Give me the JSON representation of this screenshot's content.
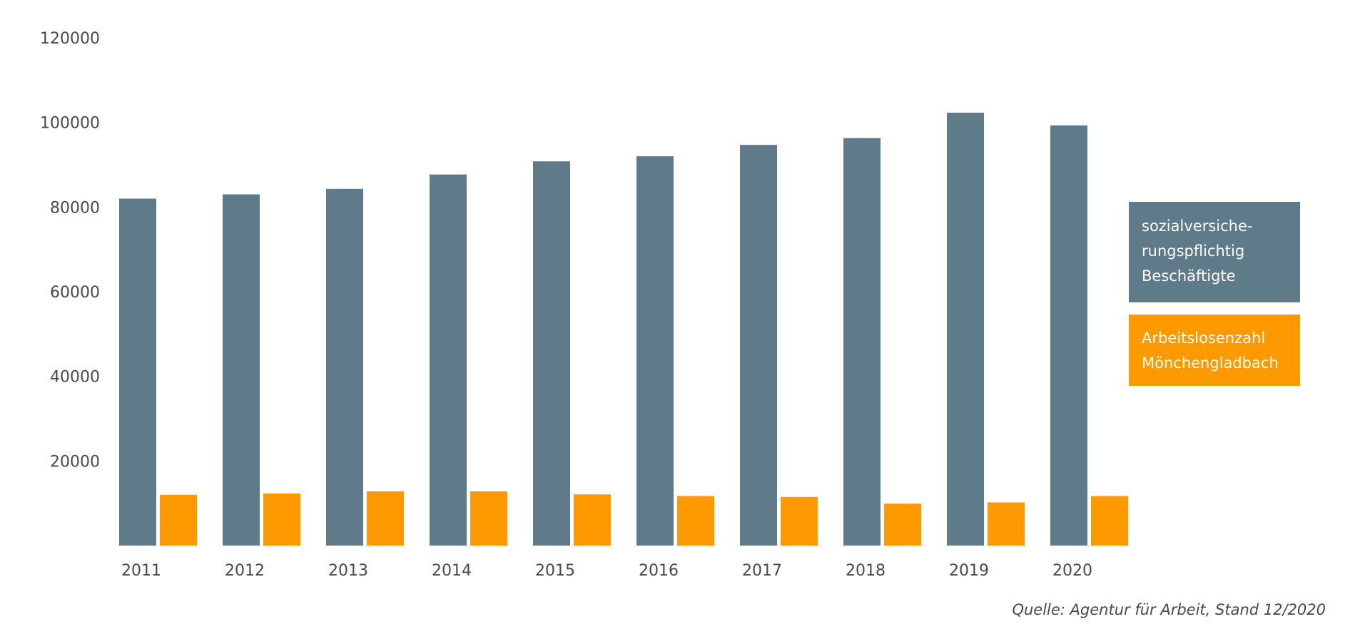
{
  "chart_data": {
    "type": "bar",
    "title": "",
    "xlabel": "",
    "ylabel": "",
    "categories": [
      "2011",
      "2012",
      "2013",
      "2014",
      "2015",
      "2016",
      "2017",
      "2018",
      "2019",
      "2020"
    ],
    "ylim": [
      0,
      120000
    ],
    "yticks": [
      "20000",
      "40000",
      "60000",
      "80000",
      "100000",
      "120000"
    ],
    "ytick_values": [
      20000,
      40000,
      60000,
      80000,
      100000,
      120000
    ],
    "grid": false,
    "legend_position": "right",
    "series": [
      {
        "name": "sozialversicherungspflichtig Beschäftigte",
        "name_lines": [
          "sozialversiche-",
          "rungspflichtig",
          "Beschäftigte"
        ],
        "color": "#5f7b89",
        "values": [
          82000,
          83000,
          84300,
          87700,
          90800,
          92000,
          94700,
          96300,
          102300,
          99300
        ]
      },
      {
        "name": "Arbeitslosenzahl Mönchengladbach",
        "name_lines": [
          "Arbeitslosenzahl",
          "Mönchengladbach"
        ],
        "color": "#ff9900",
        "values": [
          12000,
          12300,
          12800,
          12800,
          12100,
          11700,
          11500,
          9900,
          10200,
          11700
        ]
      }
    ]
  },
  "source_note": "Quelle: Agentur für Arbeit, Stand 12/2020"
}
